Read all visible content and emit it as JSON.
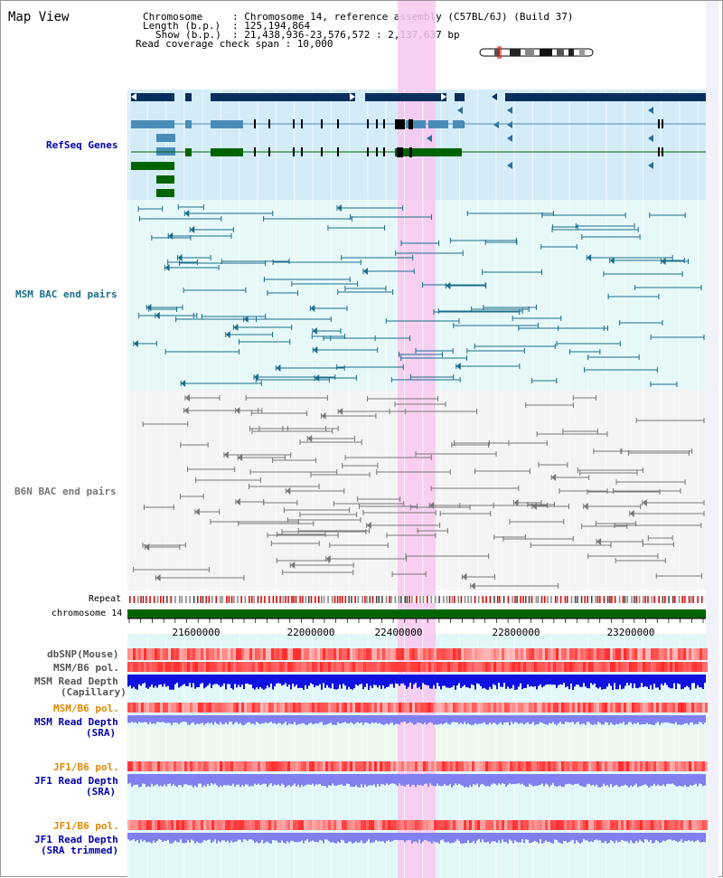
{
  "view_title": "Map View",
  "header": {
    "chromosome_key": "Chromosome",
    "chromosome_val": ": Chromosome 14, reference assembly (C57BL/6J) (Build 37)",
    "length_key": "Length (b.p.)",
    "length_val": ": 125,194,864",
    "show_key": "Show (b.p.)",
    "show_val": ": 21,438,936-23,576,572 : 2,137,637 bp",
    "coverage": "Read coverage check span : 10,000"
  },
  "tracks": {
    "refseq": "RefSeq Genes",
    "msm_bac": "MSM BAC end pairs",
    "b6n_bac": "B6N BAC end pairs",
    "repeat": "Repeat",
    "chromosome": "chromosome 14",
    "dbsnp": "dbSNP(Mouse)",
    "msm_b6_pol_1": "MSM/B6 pol.",
    "msm_depth_cap_1": "MSM Read Depth",
    "msm_depth_cap_2": "(Capillary)",
    "msm_b6_pol_2": "MSM/B6 pol.",
    "msm_depth_sra_1": "MSM Read Depth",
    "msm_depth_sra_2": "(SRA)",
    "jf1_b6_pol_1": "JF1/B6 pol.",
    "jf1_depth_sra_1": "JF1 Read Depth",
    "jf1_depth_sra_2": "(SRA)",
    "jf1_b6_pol_2": "JF1/B6 pol.",
    "jf1_depth_trim_1": "JF1 Read Depth",
    "jf1_depth_trim_2": "(SRA trimmed)"
  },
  "axis_ticks": [
    "21600000",
    "22000000",
    "22400000",
    "22800000",
    "23200000"
  ],
  "colors": {
    "navy": "#0a2f5c",
    "refseq_blue": "#4a8cb8",
    "refseq_green": "#006400",
    "label_blue": "#0000aa",
    "label_orange": "#dd8800",
    "highlight": "#f8c8f0",
    "msm_bac_line": "#1a6e8a",
    "b6n_bac_line": "#777777",
    "depth_blue": "#1010e0",
    "depth_sra": "#8080f0",
    "repeat_red": "#dd0000",
    "chrom_green": "#006400"
  },
  "icons": {
    "karyotype": "chromosome-ideogram-icon"
  }
}
